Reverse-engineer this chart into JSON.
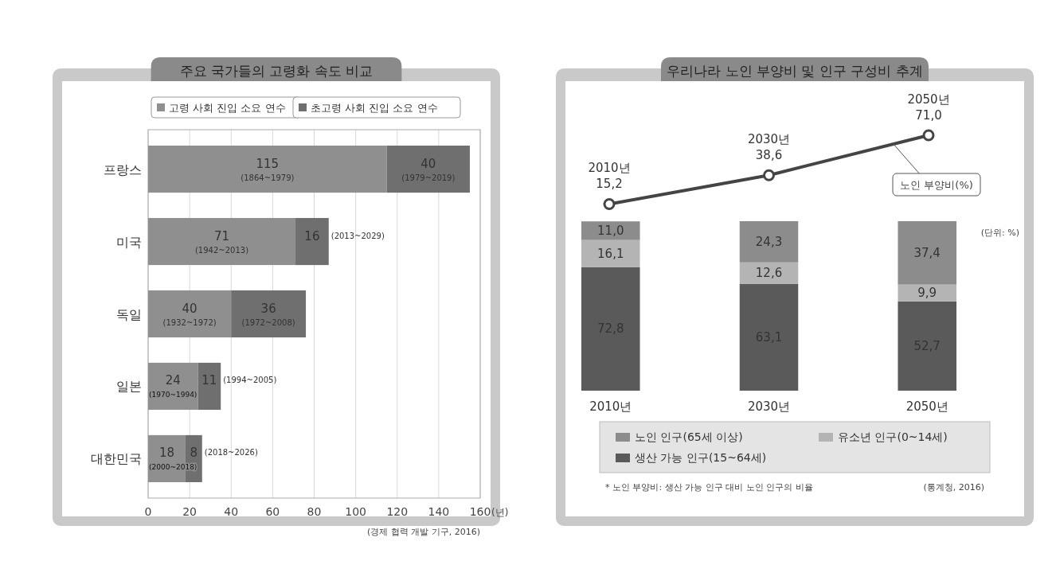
{
  "chart_data": [
    {
      "type": "bar",
      "orientation": "horizontal",
      "stacked": true,
      "title": "주요 국가들의 고령화 속도 비교",
      "xlabel": "(년)",
      "categories": [
        "프랑스",
        "미국",
        "독일",
        "일본",
        "대한민국"
      ],
      "series": [
        {
          "name": "고령 사회 진입 소요 연수",
          "color": "#8f8f8f",
          "values": [
            115,
            71,
            40,
            24,
            18
          ],
          "value_labels": [
            "115\n(1864~1979)",
            "71\n(1942~2013)",
            "40\n(1932~1972)",
            "24\n(1970~1994)",
            "18\n(2000~2018)"
          ]
        },
        {
          "name": "초고령 사회 진입 소요 연수",
          "color": "#6f6f6f",
          "values": [
            40,
            16,
            36,
            11,
            8
          ],
          "value_labels": [
            "40\n(1979~2019)",
            "16\n(2013~2029)",
            "36\n(1972~2008)",
            "11\n(1994~2005)",
            "8\n(2018~2026)"
          ]
        }
      ],
      "xlim": [
        0,
        160
      ],
      "xticks": [
        0,
        20,
        40,
        60,
        80,
        100,
        120,
        140,
        160
      ],
      "grid": "x",
      "legend": "top",
      "annotations": [
        "(경제 협력 개발 기구, 2016)"
      ]
    },
    {
      "type": "line",
      "title": "우리나라 노인 부양비 및 인구 구성비 추계",
      "categories": [
        "2010년",
        "2030년",
        "2050년"
      ],
      "series": [
        {
          "name": "노인 부양비(%)",
          "color": "#444444",
          "values": [
            15.2,
            38.6,
            71.0
          ],
          "value_labels": [
            "15,2",
            "38,6",
            "71,0"
          ]
        }
      ],
      "marker": "circle"
    },
    {
      "type": "bar",
      "stacked": true,
      "categories": [
        "2010년",
        "2030년",
        "2050년"
      ],
      "series": [
        {
          "name": "생산 가능 인구(15~64세)",
          "color": "#5a5a5a",
          "values": [
            72.8,
            63.1,
            52.7
          ],
          "value_labels": [
            "72,8",
            "63,1",
            "52,7"
          ]
        },
        {
          "name": "유소년 인구(0~14세)",
          "color": "#b4b4b4",
          "values": [
            16.1,
            12.6,
            9.9
          ],
          "value_labels": [
            "16,1",
            "12,6",
            "9,9"
          ]
        },
        {
          "name": "노인 인구(65세 이상)",
          "color": "#8c8c8c",
          "values": [
            11.0,
            24.3,
            37.4
          ],
          "value_labels": [
            "11,0",
            "24,3",
            "37,4"
          ]
        }
      ],
      "legend": "bottom",
      "annotations": [
        "(단위: %)",
        "* 노인 부양비: 생산 가능 인구 대비 노인 인구의 비율",
        "(통계청, 2016)"
      ]
    }
  ]
}
